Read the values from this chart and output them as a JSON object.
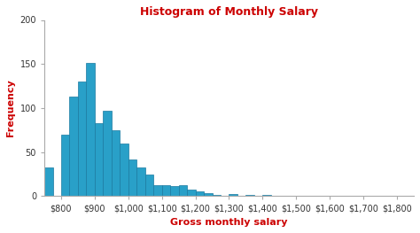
{
  "title": "Histogram of Monthly Salary",
  "xlabel": "Gross monthly salary",
  "ylabel": "Frequency",
  "title_color": "#cc0000",
  "axis_label_color": "#cc0000",
  "bar_color": "#29a0c8",
  "bar_edge_color": "#1a7aa0",
  "background_color": "#ffffff",
  "bin_left_edges": [
    750,
    800,
    825,
    850,
    875,
    900,
    925,
    950,
    975,
    1000,
    1025,
    1050,
    1075,
    1100,
    1125,
    1150,
    1175,
    1200,
    1225,
    1250,
    1300,
    1350,
    1400,
    1450
  ],
  "frequencies": [
    33,
    70,
    113,
    130,
    151,
    83,
    97,
    75,
    60,
    42,
    33,
    25,
    13,
    13,
    12,
    13,
    8,
    5,
    3,
    1,
    2,
    1,
    1,
    0
  ],
  "bin_width": 25,
  "ylim": [
    0,
    200
  ],
  "yticks": [
    0,
    50,
    100,
    150,
    200
  ],
  "xticks": [
    800,
    900,
    1000,
    1100,
    1200,
    1300,
    1400,
    1500,
    1600,
    1700,
    1800
  ],
  "xlim": [
    750,
    1850
  ]
}
